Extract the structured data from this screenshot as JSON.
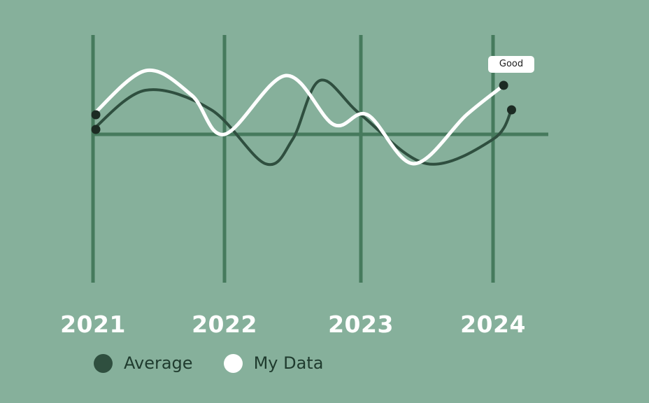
{
  "chart_data": {
    "type": "line",
    "title": "",
    "xlabel": "",
    "ylabel": "",
    "categories": [
      "2021",
      "2022",
      "2023",
      "2024"
    ],
    "ylim": [
      -1,
      1
    ],
    "grid": true,
    "legend_position": "bottom-left",
    "series": [
      {
        "name": "Average",
        "color": "#2f4f3f",
        "x": [
          2021.0,
          2021.4,
          2021.9,
          2022.3,
          2022.5,
          2022.7,
          2023.0,
          2023.5,
          2024.0,
          2024.14
        ],
        "y": [
          0.05,
          0.45,
          0.25,
          -0.3,
          -0.05,
          0.55,
          0.2,
          -0.3,
          -0.05,
          0.25
        ]
      },
      {
        "name": "My Data",
        "color": "#ffffff",
        "x": [
          2021.0,
          2021.4,
          2021.75,
          2022.0,
          2022.45,
          2022.8,
          2023.05,
          2023.4,
          2023.8,
          2024.08
        ],
        "y": [
          0.2,
          0.65,
          0.4,
          0.0,
          0.6,
          0.1,
          0.2,
          -0.3,
          0.2,
          0.5
        ]
      }
    ],
    "annotation": {
      "text": "Good",
      "series": "My Data"
    }
  }
}
